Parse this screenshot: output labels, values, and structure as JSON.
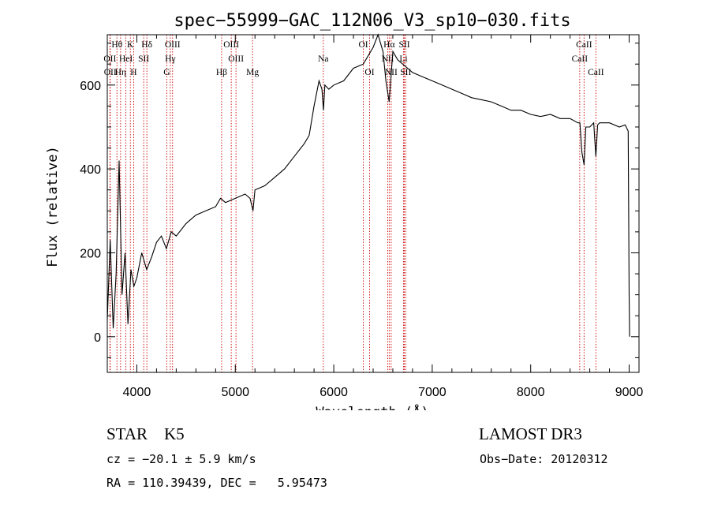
{
  "chart_data": {
    "type": "line",
    "title": "spec−55999−GAC_112N06_V3_sp10−030.fits",
    "xlabel": "Wavelength (Å)",
    "ylabel": "Flux (relative)",
    "xlim": [
      3700,
      9100
    ],
    "ylim": [
      -85,
      720
    ],
    "x_ticks": [
      4000,
      5000,
      6000,
      7000,
      8000,
      9000
    ],
    "y_ticks": [
      0,
      200,
      400,
      600
    ],
    "series": [
      {
        "name": "spectrum",
        "x": [
          3700,
          3730,
          3760,
          3790,
          3820,
          3850,
          3880,
          3910,
          3940,
          3970,
          4000,
          4050,
          4100,
          4150,
          4200,
          4250,
          4300,
          4350,
          4400,
          4500,
          4600,
          4700,
          4800,
          4850,
          4900,
          5000,
          5100,
          5150,
          5180,
          5200,
          5300,
          5400,
          5500,
          5600,
          5700,
          5750,
          5800,
          5850,
          5880,
          5895,
          5910,
          5950,
          6000,
          6100,
          6200,
          6300,
          6400,
          6450,
          6500,
          6530,
          6563,
          6600,
          6650,
          6700,
          6750,
          6800,
          6900,
          7000,
          7100,
          7200,
          7300,
          7400,
          7500,
          7600,
          7700,
          7800,
          7900,
          8000,
          8100,
          8200,
          8300,
          8400,
          8480,
          8500,
          8520,
          8542,
          8560,
          8600,
          8640,
          8662,
          8680,
          8700,
          8800,
          8900,
          8960,
          8990,
          9000,
          9005
        ],
        "y": [
          40,
          230,
          20,
          150,
          420,
          100,
          200,
          30,
          160,
          120,
          140,
          200,
          160,
          190,
          225,
          240,
          210,
          250,
          240,
          270,
          290,
          300,
          310,
          330,
          320,
          330,
          340,
          330,
          300,
          350,
          360,
          380,
          400,
          430,
          460,
          480,
          550,
          610,
          590,
          540,
          600,
          590,
          600,
          610,
          640,
          650,
          690,
          720,
          680,
          610,
          560,
          680,
          660,
          650,
          640,
          630,
          620,
          610,
          600,
          590,
          580,
          570,
          565,
          560,
          550,
          540,
          540,
          530,
          525,
          530,
          520,
          520,
          510,
          510,
          440,
          410,
          500,
          500,
          510,
          430,
          505,
          510,
          510,
          500,
          505,
          490,
          100,
          0
        ]
      }
    ],
    "line_markers": [
      {
        "label": "Hθ",
        "x": 3798,
        "row": 0
      },
      {
        "label": "OII",
        "x": 3727,
        "row": 1
      },
      {
        "label": "OII",
        "x": 3730,
        "row": 2
      },
      {
        "label": "K",
        "x": 3934,
        "row": 0
      },
      {
        "label": "HeI",
        "x": 3889,
        "row": 1
      },
      {
        "label": "Hη",
        "x": 3835,
        "row": 2
      },
      {
        "label": "Hδ",
        "x": 4102,
        "row": 0
      },
      {
        "label": "SII",
        "x": 4070,
        "row": 1
      },
      {
        "label": "H",
        "x": 3968,
        "row": 2
      },
      {
        "label": "OIII",
        "x": 4363,
        "row": 0
      },
      {
        "label": "Hγ",
        "x": 4340,
        "row": 1
      },
      {
        "label": "G",
        "x": 4304,
        "row": 2
      },
      {
        "label": "OIII",
        "x": 4959,
        "row": 0
      },
      {
        "label": "OIII",
        "x": 5007,
        "row": 1
      },
      {
        "label": "Hβ",
        "x": 4861,
        "row": 2
      },
      {
        "label": "Mg",
        "x": 5175,
        "row": 2
      },
      {
        "label": "Na",
        "x": 5894,
        "row": 1
      },
      {
        "label": "OI",
        "x": 6300,
        "row": 0
      },
      {
        "label": "OI",
        "x": 6364,
        "row": 2
      },
      {
        "label": "Hα",
        "x": 6563,
        "row": 0
      },
      {
        "label": "NII",
        "x": 6548,
        "row": 1
      },
      {
        "label": "NII",
        "x": 6583,
        "row": 2
      },
      {
        "label": "SII",
        "x": 6717,
        "row": 0
      },
      {
        "label": "Li",
        "x": 6708,
        "row": 1
      },
      {
        "label": "SII",
        "x": 6731,
        "row": 2
      },
      {
        "label": "CaII",
        "x": 8542,
        "row": 0
      },
      {
        "label": "CaII",
        "x": 8498,
        "row": 1
      },
      {
        "label": "CaII",
        "x": 8662,
        "row": 2
      }
    ]
  },
  "info": {
    "class": "STAR    K5",
    "survey": "LAMOST DR3",
    "redshift": "cz = −20.1 ± 5.9 km/s",
    "obs_date": "Obs−Date: 20120312",
    "coords": "RA = 110.39439, DEC =   5.95473"
  },
  "colors": {
    "axes": "#000000",
    "spectrum": "#000000",
    "marker_line": "#cc0000",
    "background": "#ffffff"
  }
}
